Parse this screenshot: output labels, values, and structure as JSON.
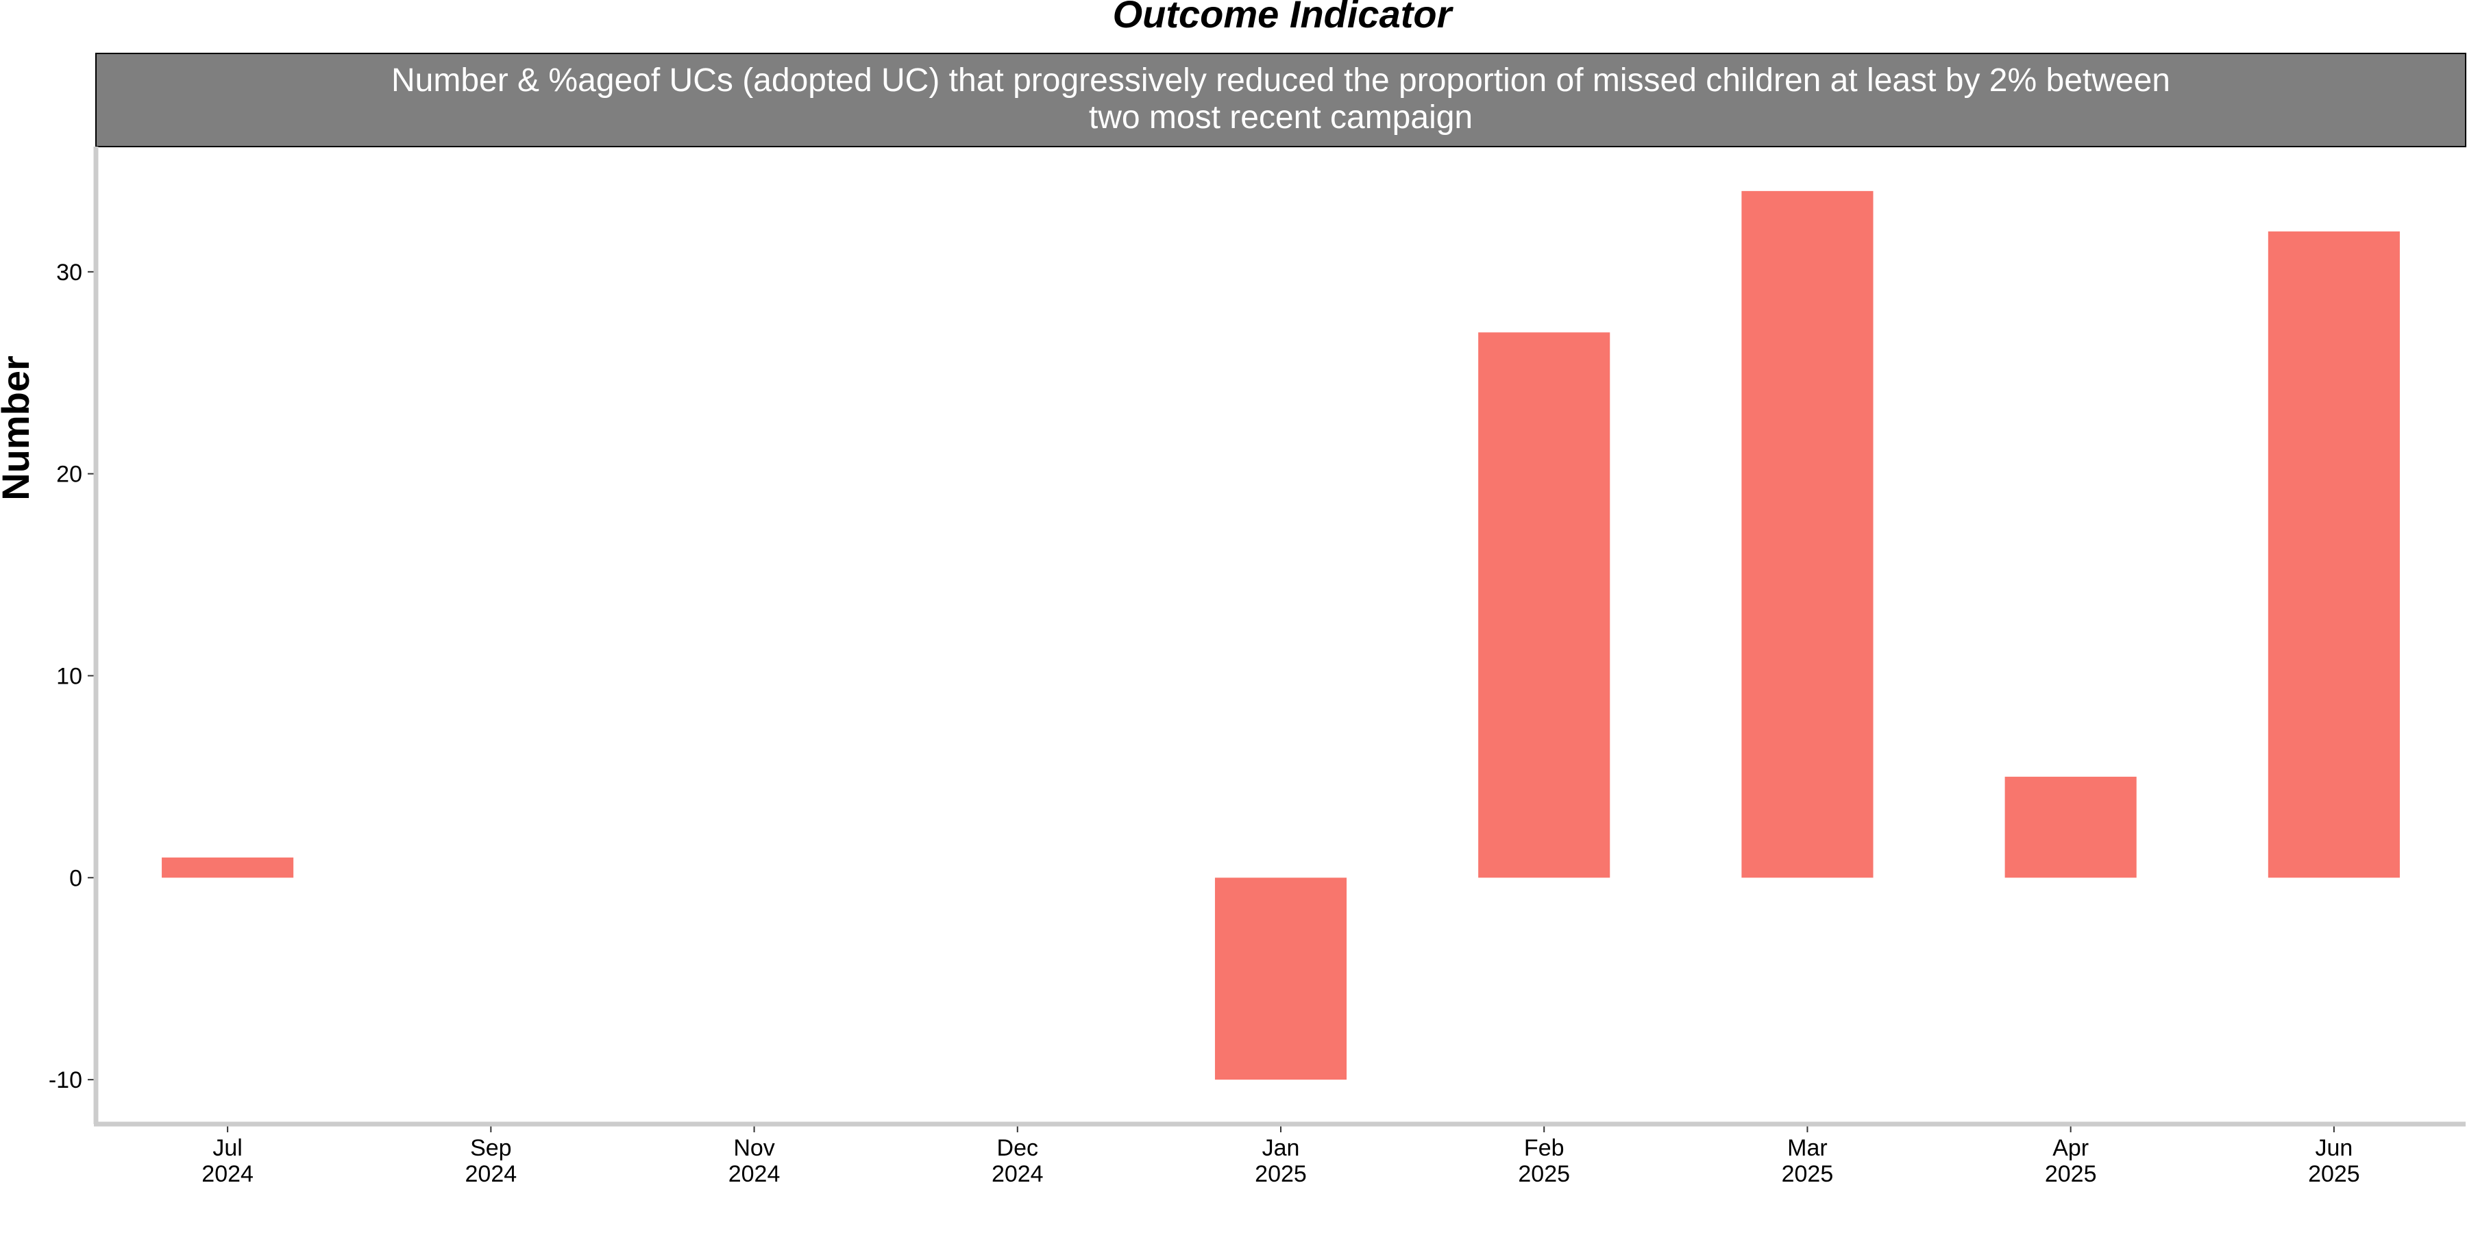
{
  "chart_data": {
    "type": "bar",
    "title": "Outcome Indicator",
    "strip_label_lines": [
      "Number & %ageof UCs (adopted UC) that progressively reduced the proportion of missed children at least by 2% between",
      "two most recent campaign"
    ],
    "ylabel": "Number",
    "xlabel": "",
    "categories": [
      [
        "Jul",
        "2024"
      ],
      [
        "Sep",
        "2024"
      ],
      [
        "Nov",
        "2024"
      ],
      [
        "Dec",
        "2024"
      ],
      [
        "Jan",
        "2025"
      ],
      [
        "Feb",
        "2025"
      ],
      [
        "Mar",
        "2025"
      ],
      [
        "Apr",
        "2025"
      ],
      [
        "Jun",
        "2025"
      ]
    ],
    "values": [
      1,
      null,
      null,
      null,
      -10,
      27,
      34,
      5,
      32
    ],
    "yticks": [
      -10,
      0,
      10,
      20,
      30
    ],
    "ylim": [
      -12.2,
      36.2
    ],
    "grid": false,
    "legend": "none",
    "colors": {
      "bar": "#F8766D",
      "strip_bg": "#7F7F7F",
      "axis": "#CCCCCC"
    }
  }
}
